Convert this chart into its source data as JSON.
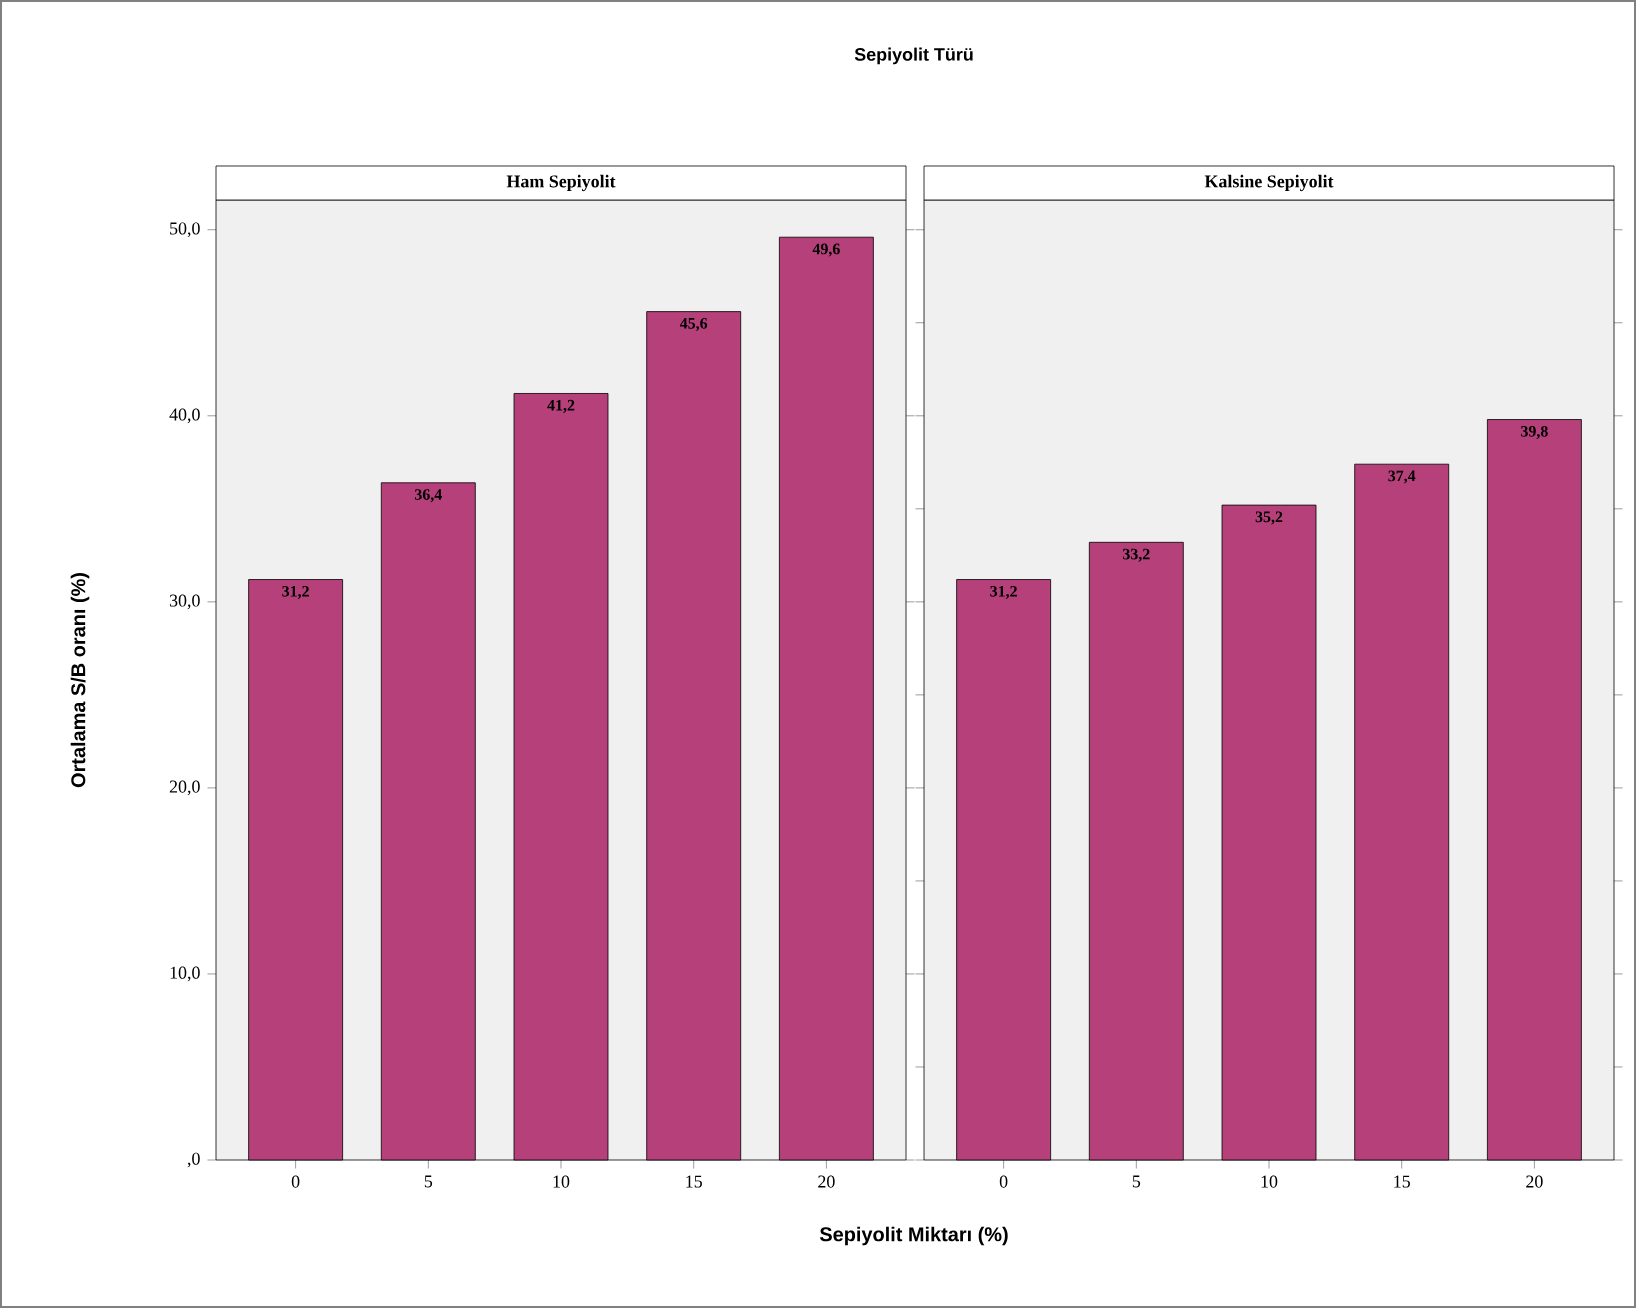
{
  "chart_data": [
    {
      "type": "bar",
      "title": "Ham Sepiyolit",
      "annotations": [
        "Sepiyolit Türü"
      ],
      "xlabel": "Sepiyolit Miktarı (%)",
      "ylabel": "Ortalama S/B oranı (%)",
      "categories": [
        "0",
        "5",
        "10",
        "15",
        "20"
      ],
      "values": [
        31.2,
        36.4,
        41.2,
        45.6,
        49.6
      ],
      "value_labels": [
        "31,2",
        "36,4",
        "41,2",
        "45,6",
        "49,6"
      ],
      "color": "#b5407a",
      "ylim": [
        0,
        51.6
      ],
      "yticks": [
        {
          "value": 0,
          "label": ",0"
        },
        {
          "value": 10,
          "label": "10,0"
        },
        {
          "value": 20,
          "label": "20,0"
        },
        {
          "value": 30,
          "label": "30,0"
        },
        {
          "value": 40,
          "label": "40,0"
        },
        {
          "value": 50,
          "label": "50,0"
        }
      ]
    },
    {
      "type": "bar",
      "title": "Kalsine Sepiyolit",
      "categories": [
        "0",
        "5",
        "10",
        "15",
        "20"
      ],
      "values": [
        31.2,
        33.2,
        35.2,
        37.4,
        39.8
      ],
      "value_labels": [
        "31,2",
        "33,2",
        "35,2",
        "37,4",
        "39,8"
      ],
      "color": "#b5407a",
      "ylim": [
        0,
        51.6
      ],
      "tick_labels": "x"
    }
  ]
}
